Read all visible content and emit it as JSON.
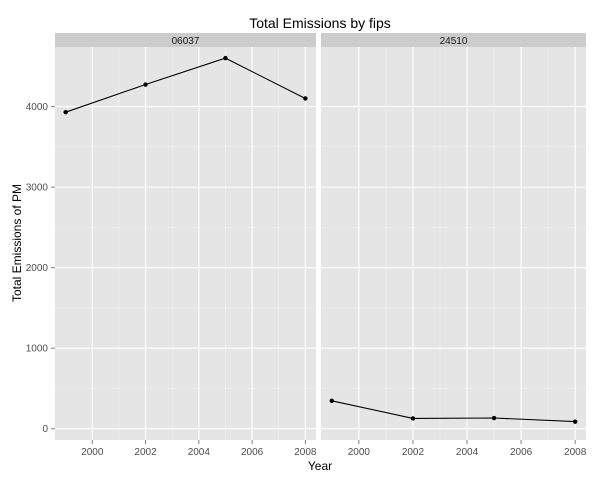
{
  "chart_data": {
    "type": "line",
    "title": "Total Emissions by fips",
    "xlabel": "Year",
    "ylabel": "Total Emissions of PM",
    "x": [
      1999,
      2002,
      2005,
      2008
    ],
    "xticks": [
      2000,
      2002,
      2004,
      2006,
      2008
    ],
    "yticks": [
      0,
      1000,
      2000,
      3000,
      4000
    ],
    "xlim": [
      1998.6,
      2008.4
    ],
    "ylim": [
      -140,
      4740
    ],
    "grid": true,
    "legend": "none",
    "colors": {
      "panel_bg": "#e5e5e5",
      "strip_bg": "#cccccc",
      "grid": "#ffffff",
      "line": "#000000"
    },
    "facets": [
      {
        "name": "06037",
        "values": [
          3931,
          4274,
          4602,
          4101
        ]
      },
      {
        "name": "24510",
        "values": [
          347,
          128,
          133,
          88
        ]
      }
    ]
  }
}
